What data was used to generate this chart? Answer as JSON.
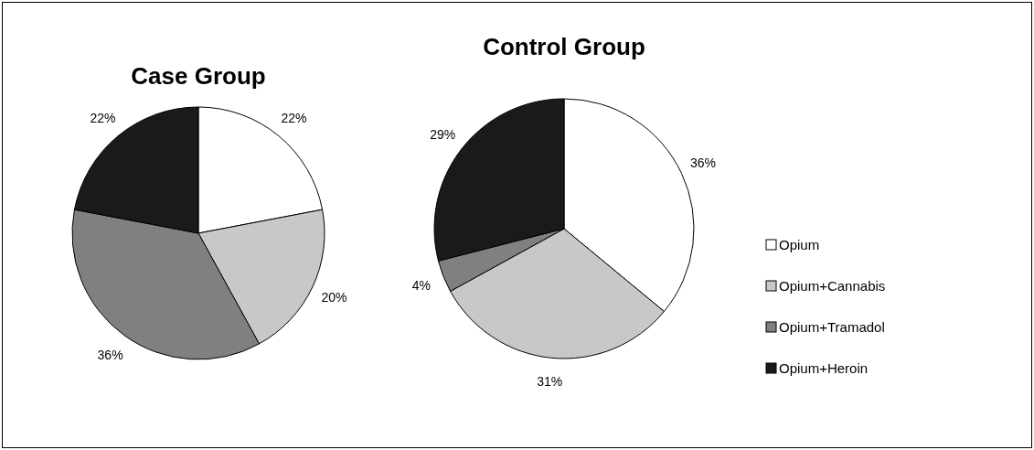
{
  "chart_data": [
    {
      "type": "pie",
      "title": "Case Group",
      "categories": [
        null,
        null,
        null,
        null
      ],
      "values": [
        22,
        20,
        36,
        22
      ],
      "value_labels": [
        "22%",
        "20%",
        "36%",
        "22%"
      ],
      "colors": [
        "#ffffff",
        "#c8c8c8",
        "#808080",
        "#1a1a1a"
      ]
    },
    {
      "type": "pie",
      "title": "Control Group",
      "categories": [
        "Opium",
        "Opium+Cannabis",
        "Opium+Tramadol",
        "Opium+Heroin"
      ],
      "values": [
        36,
        31,
        4,
        29
      ],
      "value_labels": [
        "36%",
        "31%",
        "4%",
        "29%"
      ],
      "colors": [
        "#ffffff",
        "#c8c8c8",
        "#808080",
        "#1a1a1a"
      ],
      "legend": "right"
    }
  ]
}
